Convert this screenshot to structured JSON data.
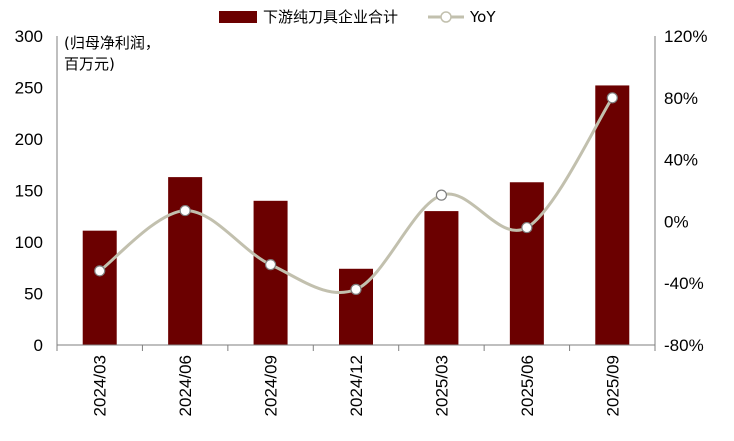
{
  "chart_data": {
    "type": "bar+line",
    "categories": [
      "2024/03",
      "2024/06",
      "2024/09",
      "2024/12",
      "2025/03",
      "2025/06",
      "2025/09"
    ],
    "series": [
      {
        "name": "下游纯刀具企业合计",
        "type": "bar",
        "axis": "left",
        "values": [
          111,
          163,
          140,
          74,
          130,
          158,
          252
        ],
        "color": "#6b0000"
      },
      {
        "name": "YoY",
        "type": "line",
        "axis": "right",
        "values": [
          -32,
          7,
          -28,
          -44,
          17,
          -4,
          80
        ],
        "color": "#c2c0ae"
      }
    ],
    "ylabel": "(归母净利润，百万元)",
    "ylabel_lines": [
      "(归母净利润，",
      "百万元)"
    ],
    "ylim": [
      0,
      300
    ],
    "yticks": [
      0,
      50,
      100,
      150,
      200,
      250,
      300
    ],
    "y2lim": [
      -80,
      120
    ],
    "y2ticks": [
      "-80%",
      "-40%",
      "0%",
      "40%",
      "80%",
      "120%"
    ],
    "grid": false,
    "legend_position": "top-center"
  }
}
